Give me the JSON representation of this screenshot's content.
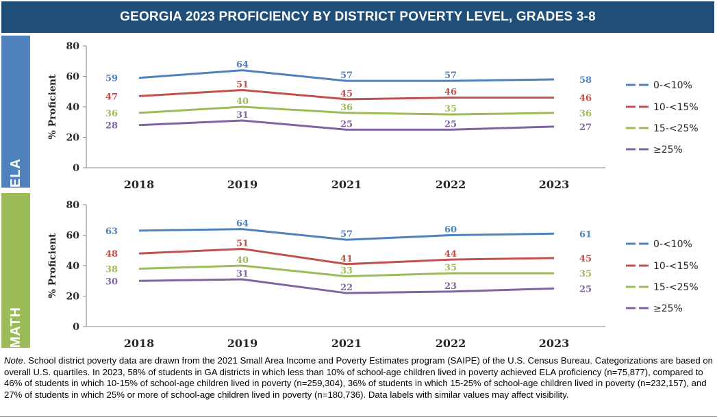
{
  "title": "GEORGIA 2023 PROFICIENCY BY DISTRICT POVERTY LEVEL, GRADES 3-8",
  "colors": {
    "title_bg": "#1f4e79",
    "ela_label_bg": "#4f81bd",
    "math_label_bg": "#9bbb59",
    "series": [
      "#4f81bd",
      "#c0504d",
      "#9bbb59",
      "#8064a2"
    ]
  },
  "chart_data": [
    {
      "type": "line",
      "panel_label": "ELA",
      "x": [
        "2018",
        "2019",
        "2021",
        "2022",
        "2023"
      ],
      "ylabel": "% Proficient",
      "ylim": [
        0,
        80
      ],
      "yticks": [
        0,
        20,
        40,
        60,
        80
      ],
      "grid": false,
      "legend_position": "right",
      "data_labels": true,
      "series": [
        {
          "name": "0-<10%",
          "values": [
            59,
            64,
            57,
            57,
            58
          ]
        },
        {
          "name": "10-<15%",
          "values": [
            47,
            51,
            45,
            46,
            46
          ]
        },
        {
          "name": "15-<25%",
          "values": [
            36,
            40,
            36,
            35,
            36
          ]
        },
        {
          "name": "≥25%",
          "values": [
            28,
            31,
            25,
            25,
            27
          ]
        }
      ]
    },
    {
      "type": "line",
      "panel_label": "MATH",
      "x": [
        "2018",
        "2019",
        "2021",
        "2022",
        "2023"
      ],
      "ylabel": "% Proficient",
      "ylim": [
        0,
        80
      ],
      "yticks": [
        0,
        20,
        40,
        60,
        80
      ],
      "grid": false,
      "legend_position": "right",
      "data_labels": true,
      "series": [
        {
          "name": "0-<10%",
          "values": [
            63,
            64,
            57,
            60,
            61
          ]
        },
        {
          "name": "10-<15%",
          "values": [
            48,
            51,
            41,
            44,
            45
          ]
        },
        {
          "name": "15-<25%",
          "values": [
            38,
            40,
            33,
            35,
            35
          ]
        },
        {
          "name": "≥25%",
          "values": [
            30,
            31,
            22,
            23,
            25
          ]
        }
      ]
    }
  ],
  "note": {
    "lead": "Note",
    "text": ". School district poverty data are drawn from the 2021 Small Area Income and Poverty Estimates program (SAIPE) of the U.S. Census Bureau. Categorizations are based on overall U.S. quartiles. In 2023, 58% of students in GA districts in which less than 10% of school-age children lived in poverty achieved ELA proficiency (n=75,877), compared to 46% of students in which 10-15% of school-age children lived in poverty (n=259,304), 36% of students in which 15-25% of school-age children lived in poverty (n=232,157), and 27% of students in which 25% or more of school-age children lived in poverty (n=180,736). Data labels with similar values may affect visibility."
  }
}
